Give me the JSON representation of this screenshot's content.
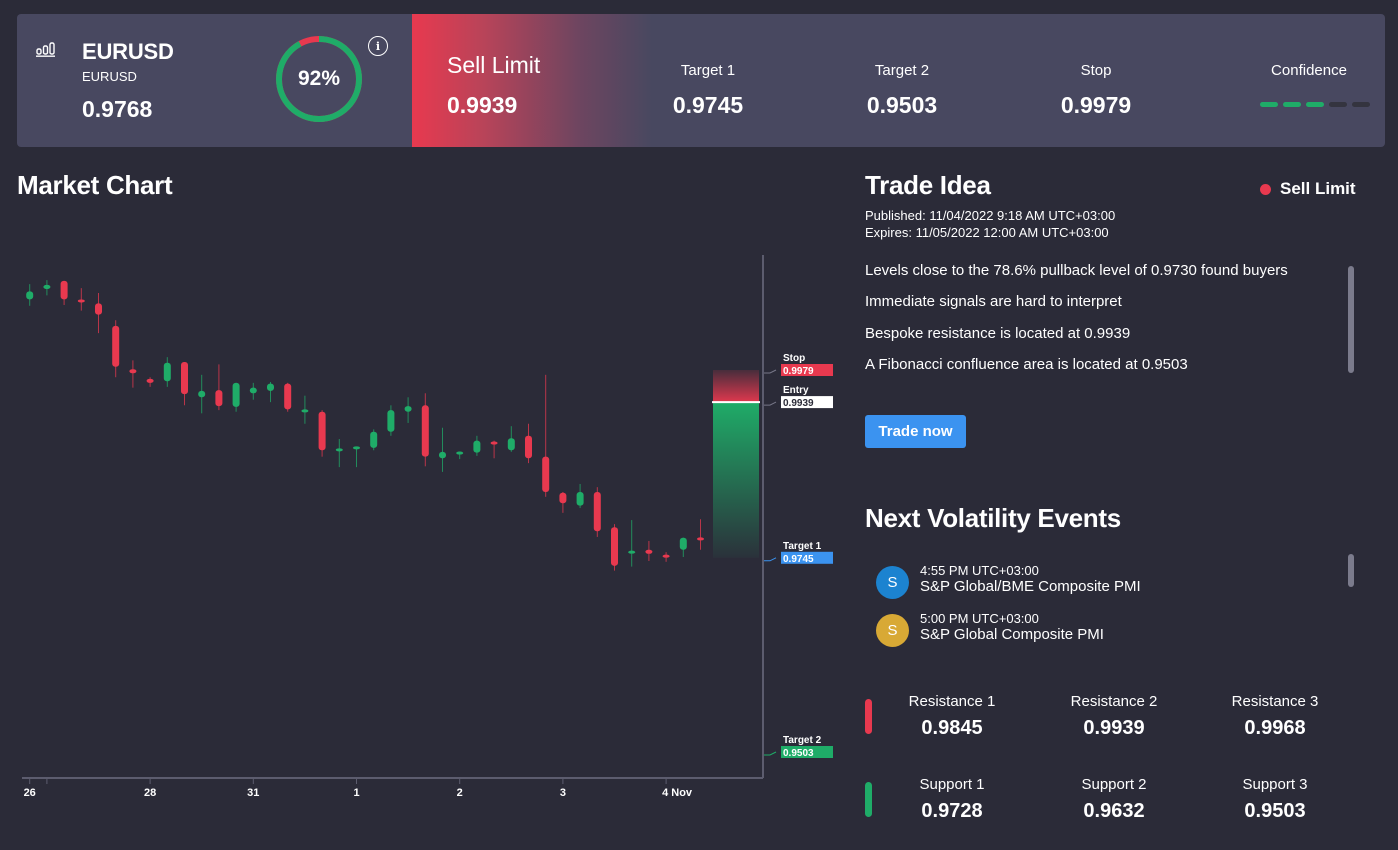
{
  "header": {
    "icon": "bar-chart-icon",
    "instrument": "EURUSD",
    "instrument_sub": "EURUSD",
    "price": "0.9768",
    "gauge": {
      "percent": 92,
      "label": "92%",
      "color_good": "#1fac68",
      "color_bad": "#e8394f"
    },
    "info_icon": "i",
    "signal_type": "Sell Limit",
    "signal_price": "0.9939",
    "metrics": [
      {
        "label": "Target 1",
        "value": "0.9745"
      },
      {
        "label": "Target 2",
        "value": "0.9503"
      },
      {
        "label": "Stop",
        "value": "0.9979"
      }
    ],
    "confidence": {
      "label": "Confidence",
      "filled": 3,
      "total": 5
    }
  },
  "market_chart": {
    "title": "Market Chart"
  },
  "chart_data": {
    "type": "candlestick",
    "title": "Market Chart",
    "x_ticks": [
      {
        "label": "26",
        "index": 0
      },
      {
        "label": "",
        "index": 1
      },
      {
        "label": "28",
        "index": 7
      },
      {
        "label": "31",
        "index": 13
      },
      {
        "label": "1",
        "index": 19
      },
      {
        "label": "2",
        "index": 25
      },
      {
        "label": "3",
        "index": 31
      },
      {
        "label": "4 Nov",
        "index": 37
      }
    ],
    "candles": [
      [
        1.0067,
        1.0086,
        1.0059,
        1.0077
      ],
      [
        1.008,
        1.0091,
        1.0072,
        1.0085
      ],
      [
        1.009,
        1.009,
        1.006,
        1.0067
      ],
      [
        1.0066,
        1.0081,
        1.0053,
        1.0064
      ],
      [
        1.0062,
        1.0075,
        1.0025,
        1.0048
      ],
      [
        1.0034,
        1.0041,
        0.997,
        0.9983
      ],
      [
        0.998,
        0.9991,
        0.9957,
        0.9975
      ],
      [
        0.9968,
        0.997,
        0.9958,
        0.9963
      ],
      [
        0.9965,
        0.9995,
        0.9958,
        0.9988
      ],
      [
        0.9989,
        0.9989,
        0.9935,
        0.9949
      ],
      [
        0.9945,
        0.9973,
        0.9925,
        0.9953
      ],
      [
        0.9954,
        0.9986,
        0.9929,
        0.9934
      ],
      [
        0.9933,
        0.9963,
        0.9927,
        0.9963
      ],
      [
        0.995,
        0.9963,
        0.9942,
        0.9957
      ],
      [
        0.9953,
        0.9964,
        0.9939,
        0.9962
      ],
      [
        0.9962,
        0.9963,
        0.9927,
        0.993
      ],
      [
        0.9927,
        0.9947,
        0.9912,
        0.9929
      ],
      [
        0.9927,
        0.9929,
        0.9871,
        0.9879
      ],
      [
        0.9878,
        0.9893,
        0.9858,
        0.9881
      ],
      [
        0.9881,
        0.9883,
        0.9858,
        0.9883
      ],
      [
        0.9882,
        0.9905,
        0.9879,
        0.9902
      ],
      [
        0.9902,
        0.9935,
        0.9897,
        0.9929
      ],
      [
        0.9927,
        0.9945,
        0.9913,
        0.9934
      ],
      [
        0.9935,
        0.995,
        0.9859,
        0.9871
      ],
      [
        0.9869,
        0.9907,
        0.9852,
        0.9877
      ],
      [
        0.9874,
        0.9877,
        0.9868,
        0.9877
      ],
      [
        0.9876,
        0.9897,
        0.9872,
        0.9891
      ],
      [
        0.9889,
        0.9891,
        0.9869,
        0.9887
      ],
      [
        0.9879,
        0.9909,
        0.9877,
        0.9894
      ],
      [
        0.9897,
        0.9912,
        0.9863,
        0.9869
      ],
      [
        0.9871,
        0.9973,
        0.9821,
        0.9827
      ],
      [
        0.9826,
        0.9827,
        0.9801,
        0.9813
      ],
      [
        0.981,
        0.9837,
        0.9807,
        0.9827
      ],
      [
        0.9827,
        0.9833,
        0.9771,
        0.9778
      ],
      [
        0.9783,
        0.9787,
        0.9729,
        0.9735
      ],
      [
        0.9751,
        0.9792,
        0.9734,
        0.9753
      ],
      [
        0.9755,
        0.9766,
        0.9741,
        0.975
      ],
      [
        0.9748,
        0.9752,
        0.974,
        0.9746
      ],
      [
        0.9755,
        0.977,
        0.9746,
        0.977
      ],
      [
        0.977,
        0.9793,
        0.9755,
        0.9767
      ]
    ],
    "candle_format": [
      "open",
      "high",
      "low",
      "close"
    ],
    "levels": [
      {
        "name": "Stop",
        "value": 0.9979,
        "label": "0.9979",
        "color": "#e8394f",
        "text_color": "#ffffff"
      },
      {
        "name": "Entry",
        "value": 0.9939,
        "label": "0.9939",
        "color": "#ffffff",
        "text_color": "#2b2b38"
      },
      {
        "name": "Target 1",
        "value": 0.9745,
        "label": "0.9745",
        "color": "#3b93f0",
        "text_color": "#ffffff"
      },
      {
        "name": "Target 2",
        "value": 0.9503,
        "label": "0.9503",
        "color": "#1fac68",
        "text_color": "#ffffff"
      }
    ],
    "colors": {
      "up": "#1fac68",
      "down": "#e8394f",
      "axis": "#5c5c6e"
    },
    "ylim": [
      0.945,
      1.0105
    ]
  },
  "trade_idea": {
    "title": "Trade Idea",
    "signal_badge": "Sell Limit",
    "published": "Published:  11/04/2022 9:18 AM UTC+03:00",
    "expires": "Expires:  11/05/2022 12:00 AM UTC+03:00",
    "points": [
      "Levels close to the 78.6% pullback level of 0.9730 found buyers",
      "Immediate signals are hard to interpret",
      "Bespoke resistance is located at 0.9939",
      "A Fibonacci confluence area is located at 0.9503"
    ],
    "button": "Trade now"
  },
  "volatility": {
    "title": "Next Volatility Events",
    "events": [
      {
        "avatar": "S",
        "color": "#1c83d0",
        "time": "4:55 PM UTC+03:00",
        "name": "S&P Global/BME Composite PMI"
      },
      {
        "avatar": "S",
        "color": "#d8a935",
        "time": "5:00 PM UTC+03:00",
        "name": "S&P Global Composite PMI"
      }
    ]
  },
  "levels": {
    "resistance_color": "#e8394f",
    "support_color": "#1fac68",
    "resistance": [
      {
        "label": "Resistance 1",
        "value": "0.9845"
      },
      {
        "label": "Resistance 2",
        "value": "0.9939"
      },
      {
        "label": "Resistance 3",
        "value": "0.9968"
      }
    ],
    "support": [
      {
        "label": "Support 1",
        "value": "0.9728"
      },
      {
        "label": "Support 2",
        "value": "0.9632"
      },
      {
        "label": "Support 3",
        "value": "0.9503"
      }
    ]
  }
}
